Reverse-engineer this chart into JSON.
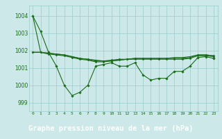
{
  "background_color": "#cce8e8",
  "plot_bg_color": "#cce8e8",
  "grid_color": "#99cccc",
  "line_color": "#1a6b1a",
  "marker_color": "#1a6b1a",
  "xlabel": "Graphe pression niveau de la mer (hPa)",
  "xlabel_fontsize": 7.5,
  "xlabel_bg": "#1a6b1a",
  "ylabel_ticks": [
    999,
    1000,
    1001,
    1002,
    1003,
    1004
  ],
  "xlim": [
    -0.5,
    23.5
  ],
  "ylim": [
    998.5,
    1004.6
  ],
  "xticks": [
    0,
    1,
    2,
    3,
    4,
    5,
    6,
    7,
    8,
    9,
    10,
    11,
    12,
    13,
    14,
    15,
    16,
    17,
    18,
    19,
    20,
    21,
    22,
    23
  ],
  "series": [
    [
      1004.0,
      1003.1,
      1001.9,
      1001.1,
      1000.0,
      999.4,
      999.6,
      1000.0,
      1001.1,
      1001.2,
      1001.3,
      1001.1,
      1001.1,
      1001.3,
      1000.6,
      1000.3,
      1000.4,
      1000.4,
      1000.8,
      1000.8,
      1001.1,
      1001.6,
      1001.65,
      1001.55
    ],
    [
      1004.0,
      1001.9,
      1001.85,
      1001.8,
      1001.75,
      1001.65,
      1001.55,
      1001.5,
      1001.45,
      1001.4,
      1001.4,
      1001.45,
      1001.5,
      1001.55,
      1001.55,
      1001.55,
      1001.55,
      1001.55,
      1001.6,
      1001.6,
      1001.65,
      1001.75,
      1001.75,
      1001.7
    ],
    [
      1001.9,
      1001.9,
      1001.85,
      1001.8,
      1001.75,
      1001.65,
      1001.55,
      1001.5,
      1001.4,
      1001.4,
      1001.45,
      1001.5,
      1001.5,
      1001.55,
      1001.55,
      1001.55,
      1001.55,
      1001.55,
      1001.55,
      1001.55,
      1001.6,
      1001.75,
      1001.75,
      1001.7
    ],
    [
      1001.9,
      1001.9,
      1001.8,
      1001.75,
      1001.7,
      1001.6,
      1001.5,
      1001.45,
      1001.35,
      1001.35,
      1001.4,
      1001.45,
      1001.5,
      1001.5,
      1001.5,
      1001.5,
      1001.5,
      1001.5,
      1001.5,
      1001.5,
      1001.55,
      1001.7,
      1001.7,
      1001.65
    ]
  ]
}
